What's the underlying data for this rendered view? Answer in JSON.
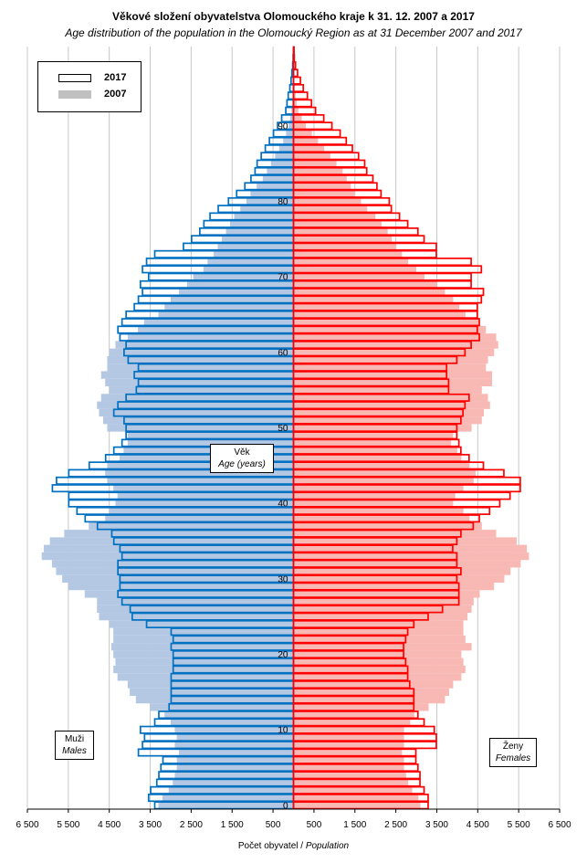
{
  "title": "Věkové složení obyvatelstva Olomouckého kraje k 31. 12. 2007 a 2017",
  "subtitle": "Age distribution of the population in the Olomoucký Region as at 31 December 2007 and 2017",
  "xlabel": {
    "cz": "Počet obyvatel / ",
    "en": "Population"
  },
  "age_label": {
    "cz": "Věk",
    "en": "Age (years)"
  },
  "males_label": {
    "cz": "Muži",
    "en": "Males"
  },
  "females_label": {
    "cz": "Ženy",
    "en": "Females"
  },
  "legend": [
    {
      "label": "2017",
      "style": "outline"
    },
    {
      "label": "2007",
      "style": "filled"
    }
  ],
  "colors": {
    "male_2017": "#0070c0",
    "female_2017": "#ff0000",
    "male_2007": "#b4c8e4",
    "female_2007": "#f8b8b4",
    "legend_2007": "#c0c0c0"
  },
  "chart_data": {
    "type": "population_pyramid",
    "xlim": [
      -6500,
      6500
    ],
    "x_ticks": [
      -6500,
      -5500,
      -4500,
      -3500,
      -2500,
      -1500,
      -500,
      500,
      1500,
      2500,
      3500,
      4500,
      5500,
      6500
    ],
    "x_tick_labels": [
      "6 500",
      "5 500",
      "4 500",
      "3 500",
      "2 500",
      "1 500",
      "500",
      "500",
      "1 500",
      "2 500",
      "3 500",
      "4 500",
      "5 500",
      "6 500"
    ],
    "ages": [
      0,
      1,
      2,
      3,
      4,
      5,
      6,
      7,
      8,
      9,
      10,
      11,
      12,
      13,
      14,
      15,
      16,
      17,
      18,
      19,
      20,
      21,
      22,
      23,
      24,
      25,
      26,
      27,
      28,
      29,
      30,
      31,
      32,
      33,
      34,
      35,
      36,
      37,
      38,
      39,
      40,
      41,
      42,
      43,
      44,
      45,
      46,
      47,
      48,
      49,
      50,
      51,
      52,
      53,
      54,
      55,
      56,
      57,
      58,
      59,
      60,
      61,
      62,
      63,
      64,
      65,
      66,
      67,
      68,
      69,
      70,
      71,
      72,
      73,
      74,
      75,
      76,
      77,
      78,
      79,
      80,
      81,
      82,
      83,
      84,
      85,
      86,
      87,
      88,
      89,
      90,
      91,
      92,
      93,
      94,
      95,
      96,
      97,
      98,
      99,
      100
    ],
    "age_ticks": [
      0,
      10,
      20,
      30,
      40,
      50,
      60,
      70,
      80,
      90
    ],
    "series": [
      {
        "name": "2017",
        "sex": "males",
        "values": [
          3400,
          3550,
          3500,
          3350,
          3300,
          3250,
          3200,
          3800,
          3700,
          3650,
          3750,
          3400,
          3300,
          3050,
          3000,
          3000,
          3000,
          3000,
          2950,
          2950,
          2950,
          3000,
          2950,
          3000,
          3600,
          3950,
          4000,
          4200,
          4300,
          4250,
          4250,
          4300,
          4300,
          4200,
          4250,
          4400,
          4450,
          4800,
          5100,
          5300,
          5500,
          5500,
          5900,
          5800,
          5500,
          5000,
          4600,
          4400,
          4200,
          4100,
          4100,
          4150,
          4400,
          4300,
          4100,
          3850,
          3800,
          3900,
          3800,
          4050,
          4150,
          4100,
          4250,
          4300,
          4200,
          4100,
          3900,
          3800,
          3700,
          3750,
          3550,
          3700,
          3600,
          3400,
          2700,
          2500,
          2300,
          2200,
          2050,
          1850,
          1600,
          1400,
          1200,
          1050,
          950,
          900,
          800,
          700,
          600,
          500,
          400,
          300,
          200,
          170,
          140,
          100,
          70,
          50,
          30,
          20,
          10
        ]
      },
      {
        "name": "2017",
        "sex": "females",
        "values": [
          3300,
          3300,
          3200,
          3100,
          3100,
          3050,
          3000,
          3000,
          3500,
          3500,
          3450,
          3200,
          3050,
          2950,
          2950,
          2950,
          2850,
          2800,
          2800,
          2750,
          2700,
          2700,
          2750,
          2800,
          2950,
          3300,
          3650,
          4050,
          4050,
          4050,
          4000,
          4100,
          4000,
          4000,
          3900,
          4000,
          4100,
          4400,
          4550,
          4800,
          5050,
          5300,
          5550,
          5550,
          5150,
          4650,
          4300,
          4100,
          4050,
          4000,
          4000,
          4100,
          4150,
          4200,
          4300,
          3800,
          3800,
          3750,
          3750,
          4000,
          4200,
          4350,
          4550,
          4500,
          4550,
          4500,
          4500,
          4600,
          4650,
          4350,
          4350,
          4600,
          4350,
          3500,
          3500,
          3200,
          3050,
          2800,
          2600,
          2400,
          2350,
          2150,
          2050,
          1950,
          1800,
          1750,
          1600,
          1450,
          1300,
          1150,
          950,
          750,
          550,
          450,
          350,
          250,
          180,
          110,
          60,
          30,
          10
        ]
      },
      {
        "name": "2007",
        "sex": "males",
        "values": [
          3300,
          3200,
          3050,
          2950,
          2900,
          2850,
          2850,
          2800,
          2900,
          2850,
          2900,
          3000,
          3150,
          3500,
          3850,
          4000,
          4050,
          4300,
          4400,
          4350,
          4400,
          4450,
          4400,
          4400,
          4500,
          4750,
          4800,
          4800,
          5100,
          5500,
          5650,
          5800,
          5900,
          6150,
          6100,
          5950,
          5600,
          5000,
          4600,
          4500,
          4350,
          4300,
          4400,
          4550,
          4600,
          4550,
          4250,
          4150,
          4050,
          4050,
          4550,
          4650,
          4750,
          4800,
          4700,
          4500,
          4600,
          4700,
          4550,
          4550,
          4500,
          4350,
          4050,
          3800,
          3650,
          3300,
          3150,
          3000,
          2800,
          2600,
          2450,
          2200,
          2100,
          1950,
          1850,
          1750,
          1650,
          1550,
          1450,
          1300,
          1150,
          1050,
          900,
          750,
          650,
          550,
          450,
          350,
          250,
          180,
          120,
          80,
          50,
          30,
          20,
          10,
          5,
          5,
          0,
          0,
          0
        ]
      },
      {
        "name": "2007",
        "sex": "females",
        "values": [
          3100,
          3050,
          2900,
          2800,
          2750,
          2700,
          2700,
          2650,
          2700,
          2700,
          2700,
          2850,
          2950,
          3300,
          3700,
          3800,
          3900,
          4100,
          4200,
          4150,
          4100,
          4350,
          4200,
          4150,
          4150,
          4250,
          4350,
          4400,
          4550,
          4900,
          5150,
          5300,
          5550,
          5750,
          5700,
          5450,
          4950,
          4600,
          4300,
          4150,
          3900,
          3950,
          4150,
          4400,
          4450,
          4300,
          4100,
          4000,
          3850,
          3900,
          4350,
          4600,
          4650,
          4800,
          4750,
          4600,
          4850,
          4850,
          4700,
          4750,
          4900,
          5000,
          4950,
          4700,
          4550,
          4200,
          4050,
          3900,
          3700,
          3500,
          3200,
          3000,
          2800,
          2650,
          2500,
          2400,
          2300,
          2150,
          2000,
          1800,
          1650,
          1500,
          1400,
          1300,
          1200,
          1050,
          900,
          750,
          600,
          450,
          300,
          200,
          120,
          80,
          50,
          30,
          15,
          10,
          5,
          0,
          0
        ]
      }
    ]
  }
}
